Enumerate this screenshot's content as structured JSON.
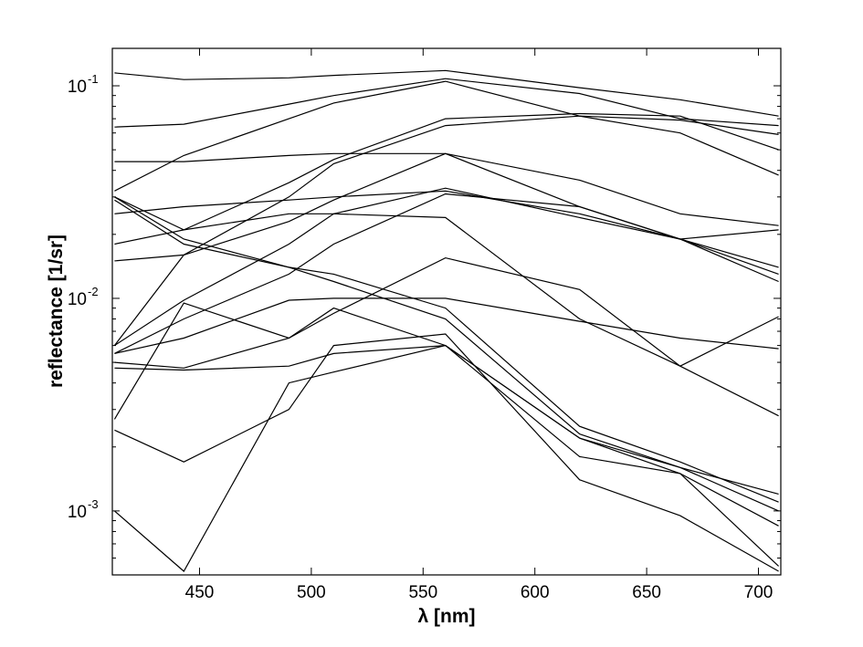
{
  "chart_data": {
    "type": "line",
    "xlabel": "λ [nm]",
    "ylabel": "reflectance [1/sr]",
    "xlim": [
      411,
      710
    ],
    "ylim": [
      0.0005,
      0.15
    ],
    "yscale": "log",
    "grid": false,
    "x": [
      412,
      443,
      490,
      510,
      560,
      620,
      665,
      709
    ],
    "x_ticks": [
      450,
      500,
      550,
      600,
      650,
      700
    ],
    "y_ticks": [
      {
        "value": 0.001,
        "base": "10",
        "exp": "-3"
      },
      {
        "value": 0.01,
        "base": "10",
        "exp": "-2"
      },
      {
        "value": 0.1,
        "base": "10",
        "exp": "-1"
      }
    ],
    "series": [
      {
        "values": [
          0.115,
          0.107,
          0.109,
          0.112,
          0.118,
          0.098,
          0.086,
          0.072
        ]
      },
      {
        "values": [
          0.064,
          0.066,
          0.082,
          0.09,
          0.108,
          0.092,
          0.07,
          0.065
        ]
      },
      {
        "values": [
          0.032,
          0.047,
          0.07,
          0.083,
          0.105,
          0.072,
          0.06,
          0.038
        ]
      },
      {
        "values": [
          0.044,
          0.044,
          0.047,
          0.048,
          0.048,
          0.036,
          0.025,
          0.022
        ]
      },
      {
        "values": [
          0.03,
          0.021,
          0.035,
          0.045,
          0.07,
          0.074,
          0.072,
          0.05
        ]
      },
      {
        "values": [
          0.006,
          0.016,
          0.03,
          0.043,
          0.065,
          0.072,
          0.069,
          0.059
        ]
      },
      {
        "values": [
          0.025,
          0.027,
          0.029,
          0.03,
          0.032,
          0.025,
          0.019,
          0.021
        ]
      },
      {
        "values": [
          0.018,
          0.021,
          0.025,
          0.025,
          0.024,
          0.008,
          0.0048,
          0.0082
        ]
      },
      {
        "values": [
          0.015,
          0.016,
          0.023,
          0.029,
          0.048,
          0.027,
          0.019,
          0.013
        ]
      },
      {
        "values": [
          0.006,
          0.0098,
          0.018,
          0.025,
          0.033,
          0.024,
          0.019,
          0.014
        ]
      },
      {
        "values": [
          0.03,
          0.019,
          0.014,
          0.013,
          0.009,
          0.0025,
          0.0017,
          0.0011
        ]
      },
      {
        "values": [
          0.029,
          0.018,
          0.014,
          0.012,
          0.008,
          0.0023,
          0.0016,
          0.001
        ]
      },
      {
        "values": [
          0.0055,
          0.008,
          0.013,
          0.018,
          0.031,
          0.027,
          0.019,
          0.012
        ]
      },
      {
        "values": [
          0.0055,
          0.0065,
          0.0098,
          0.01,
          0.01,
          0.0078,
          0.0065,
          0.0058
        ]
      },
      {
        "values": [
          0.0027,
          0.0095,
          0.0065,
          0.0085,
          0.0155,
          0.011,
          0.0048,
          0.0028
        ]
      },
      {
        "values": [
          0.0047,
          0.0046,
          0.0048,
          0.0055,
          0.006,
          0.0022,
          0.0016,
          0.0012
        ]
      },
      {
        "values": [
          0.005,
          0.0047,
          0.0065,
          0.009,
          0.006,
          0.0018,
          0.0015,
          0.00055
        ]
      },
      {
        "values": [
          0.0024,
          0.0017,
          0.003,
          0.006,
          0.0068,
          0.0014,
          0.00095,
          0.00052
        ]
      },
      {
        "values": [
          0.001,
          0.00052,
          0.004,
          0.0045,
          0.006,
          0.0022,
          0.0015,
          0.00085
        ]
      }
    ]
  }
}
